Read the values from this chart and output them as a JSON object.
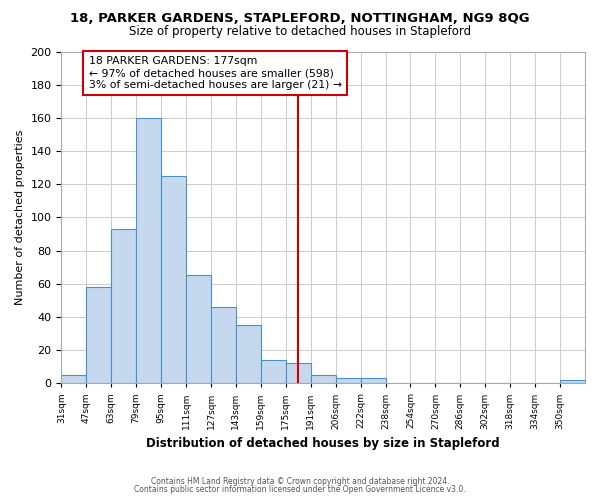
{
  "title": "18, PARKER GARDENS, STAPLEFORD, NOTTINGHAM, NG9 8QG",
  "subtitle": "Size of property relative to detached houses in Stapleford",
  "xlabel": "Distribution of detached houses by size in Stapleford",
  "ylabel": "Number of detached properties",
  "bin_labels": [
    "31sqm",
    "47sqm",
    "63sqm",
    "79sqm",
    "95sqm",
    "111sqm",
    "127sqm",
    "143sqm",
    "159sqm",
    "175sqm",
    "191sqm",
    "206sqm",
    "222sqm",
    "238sqm",
    "254sqm",
    "270sqm",
    "286sqm",
    "302sqm",
    "318sqm",
    "334sqm",
    "350sqm"
  ],
  "bar_heights": [
    5,
    58,
    93,
    160,
    125,
    65,
    46,
    35,
    14,
    12,
    5,
    3,
    3,
    0,
    0,
    0,
    0,
    0,
    0,
    0,
    2
  ],
  "bar_color": "#c5d8ee",
  "bar_edge_color": "#4a90c8",
  "vline_color": "#cc0000",
  "annotation_line1": "18 PARKER GARDENS: 177sqm",
  "annotation_line2": "← 97% of detached houses are smaller (598)",
  "annotation_line3": "3% of semi-detached houses are larger (21) →",
  "annotation_box_facecolor": "#ffffff",
  "annotation_box_edgecolor": "#cc0000",
  "ylim": [
    0,
    200
  ],
  "yticks": [
    0,
    20,
    40,
    60,
    80,
    100,
    120,
    140,
    160,
    180,
    200
  ],
  "fig_bg_color": "#ffffff",
  "ax_bg_color": "#ffffff",
  "grid_color": "#cccccc",
  "footer1": "Contains HM Land Registry data © Crown copyright and database right 2024.",
  "footer2": "Contains public sector information licensed under the Open Government Licence v3.0."
}
